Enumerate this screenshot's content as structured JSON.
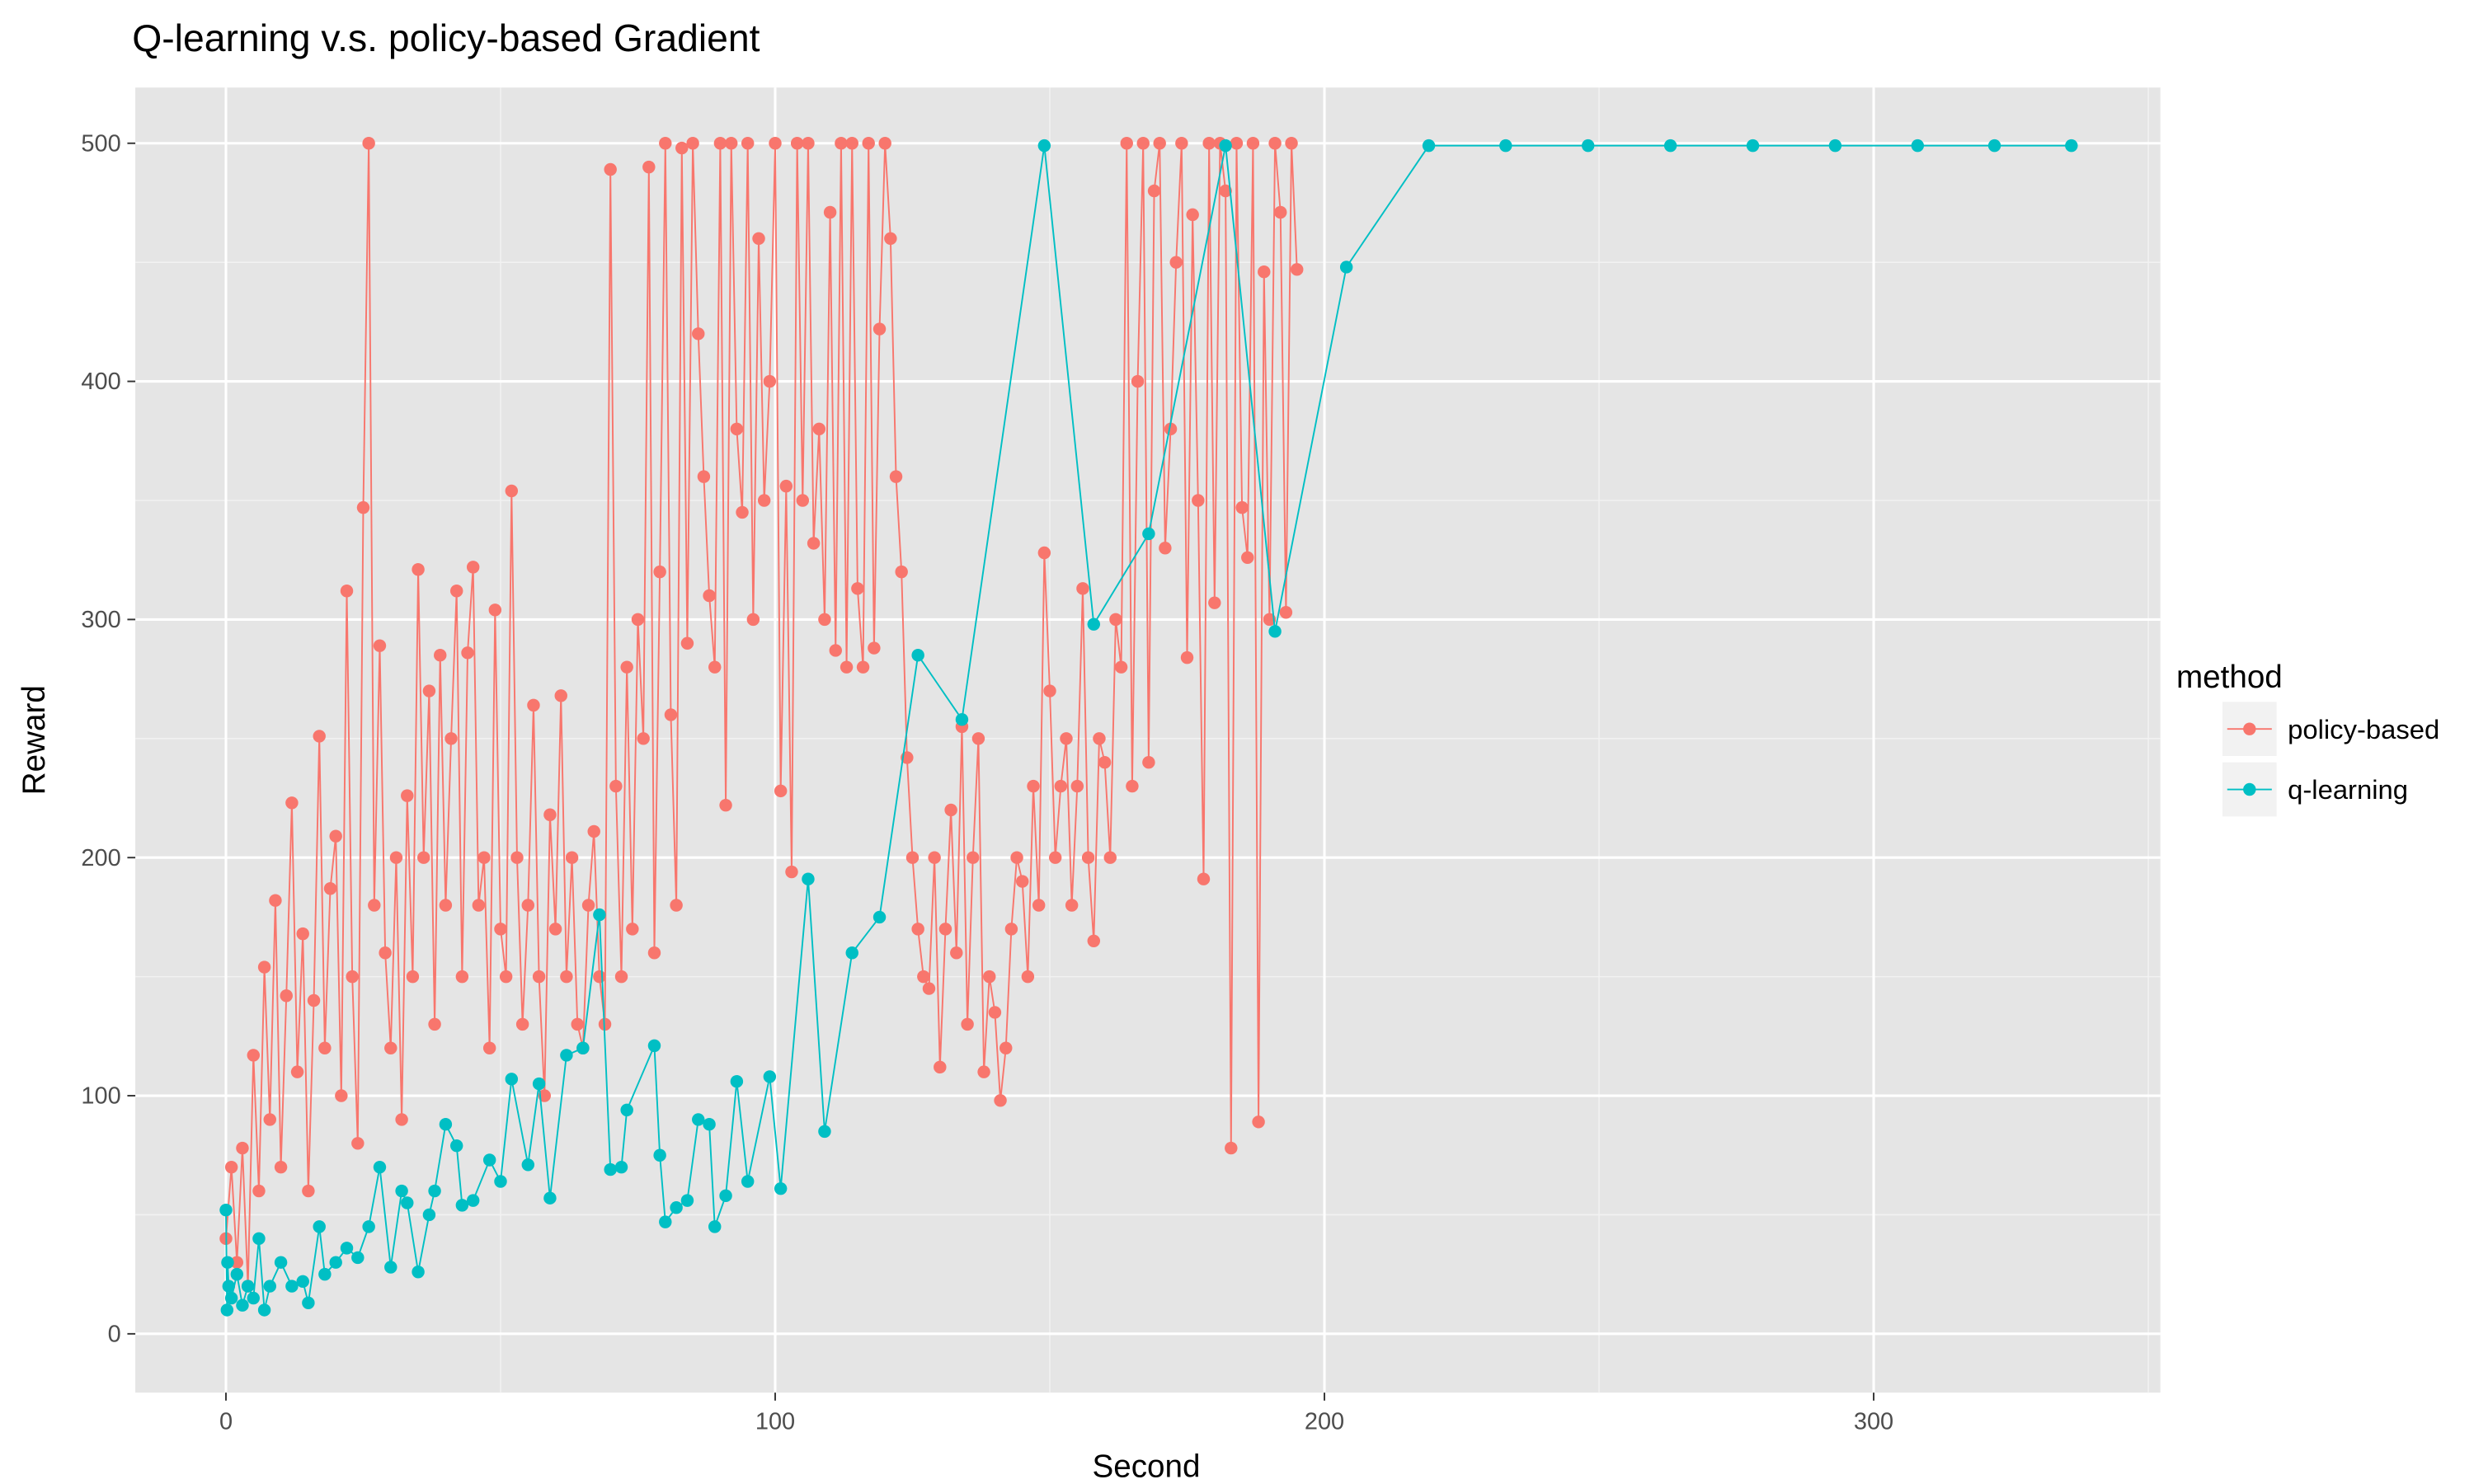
{
  "chart_data": {
    "type": "line",
    "title": "Q-learning v.s. policy-based Gradient",
    "x_label": "Second",
    "y_label": "Reward",
    "legend_title": "method",
    "legend_position": "right",
    "grid": true,
    "points": true,
    "xlim": [
      -16.5,
      352.2
    ],
    "ylim": [
      -24.7,
      523.4
    ],
    "xticks": [
      0,
      100,
      200,
      300
    ],
    "yticks": [
      0,
      100,
      200,
      300,
      400,
      500
    ],
    "series": [
      {
        "name": "policy-based",
        "color": "#F8766D",
        "x": [
          0,
          1,
          2,
          3,
          4,
          5,
          6,
          7,
          8,
          9,
          10,
          11,
          12,
          13,
          14,
          15,
          16,
          17,
          18,
          19,
          20,
          21,
          22,
          23,
          24,
          25,
          26,
          27,
          28,
          29,
          30,
          31,
          32,
          33,
          34,
          35,
          36,
          37,
          38,
          39,
          40,
          41,
          42,
          43,
          44,
          45,
          46,
          47,
          48,
          49,
          50,
          51,
          52,
          53,
          54,
          55,
          56,
          57,
          58,
          59,
          60,
          61,
          62,
          63,
          64,
          65,
          66,
          67,
          68,
          69,
          70,
          71,
          72,
          73,
          74,
          75,
          76,
          77,
          78,
          79,
          80,
          81,
          82,
          83,
          84,
          85,
          86,
          87,
          88,
          89,
          90,
          91,
          92,
          93,
          94,
          95,
          96,
          97,
          98,
          99,
          100,
          101,
          102,
          103,
          104,
          105,
          106,
          107,
          108,
          109,
          110,
          111,
          112,
          113,
          114,
          115,
          116,
          117,
          118,
          119,
          120,
          121,
          122,
          123,
          124,
          125,
          126,
          127,
          128,
          129,
          130,
          131,
          132,
          133,
          134,
          135,
          136,
          137,
          138,
          139,
          140,
          141,
          142,
          143,
          144,
          145,
          146,
          147,
          148,
          149,
          150,
          151,
          152,
          153,
          154,
          155,
          156,
          157,
          158,
          159,
          160,
          161,
          162,
          163,
          164,
          165,
          166,
          167,
          168,
          169,
          170,
          171,
          172,
          173,
          174,
          175,
          176,
          177,
          178,
          179,
          180,
          181,
          182,
          183,
          184,
          185,
          186,
          187,
          188,
          189,
          190,
          191,
          192,
          193,
          194,
          195
        ],
        "values": [
          40,
          70,
          30,
          78,
          20,
          117,
          60,
          154,
          90,
          182,
          70,
          142,
          223,
          110,
          168,
          60,
          140,
          251,
          120,
          187,
          209,
          100,
          312,
          150,
          80,
          347,
          500,
          180,
          289,
          160,
          120,
          200,
          90,
          226,
          150,
          321,
          200,
          270,
          130,
          285,
          180,
          250,
          312,
          150,
          286,
          322,
          180,
          200,
          120,
          304,
          170,
          150,
          354,
          200,
          130,
          180,
          264,
          150,
          100,
          218,
          170,
          268,
          150,
          200,
          130,
          120,
          180,
          211,
          150,
          130,
          489,
          230,
          150,
          280,
          170,
          300,
          250,
          490,
          160,
          320,
          500,
          260,
          180,
          498,
          290,
          500,
          420,
          360,
          310,
          280,
          500,
          222,
          500,
          380,
          345,
          500,
          300,
          460,
          350,
          400,
          500,
          228,
          356,
          194,
          500,
          350,
          500,
          332,
          380,
          300,
          471,
          287,
          500,
          280,
          500,
          313,
          280,
          500,
          288,
          422,
          500,
          460,
          360,
          320,
          242,
          200,
          170,
          150,
          145,
          200,
          112,
          170,
          220,
          160,
          255,
          130,
          200,
          250,
          110,
          150,
          135,
          98,
          120,
          170,
          200,
          190,
          150,
          230,
          180,
          328,
          270,
          200,
          230,
          250,
          180,
          230,
          313,
          200,
          165,
          250,
          240,
          200,
          300,
          280,
          500,
          230,
          400,
          500,
          240,
          480,
          500,
          330,
          380,
          450,
          500,
          284,
          470,
          350,
          191,
          500,
          307,
          500,
          480,
          78,
          500,
          347,
          326,
          500,
          89,
          446,
          300,
          500,
          471,
          303,
          500,
          447
        ]
      },
      {
        "name": "q-learning",
        "color": "#00BFC4",
        "x": [
          0,
          0.2,
          0.3,
          0.5,
          1,
          2,
          3,
          4,
          5,
          6,
          7,
          8,
          10,
          12,
          14,
          15,
          17,
          18,
          20,
          22,
          24,
          26,
          28,
          30,
          32,
          33,
          35,
          37,
          38,
          40,
          42,
          43,
          45,
          48,
          50,
          52,
          55,
          57,
          59,
          62,
          65,
          68,
          70,
          72,
          73,
          78,
          79,
          80,
          82,
          84,
          86,
          88,
          89,
          91,
          93,
          95,
          99,
          101,
          106,
          109,
          114,
          119,
          126,
          134,
          149,
          158,
          168,
          182,
          191,
          204,
          219,
          233,
          248,
          263,
          278,
          293,
          308,
          322,
          336
        ],
        "values": [
          52,
          10,
          30,
          20,
          15,
          25,
          12,
          20,
          15,
          40,
          10,
          20,
          30,
          20,
          22,
          13,
          45,
          25,
          30,
          36,
          32,
          45,
          70,
          28,
          60,
          55,
          26,
          50,
          60,
          88,
          79,
          54,
          56,
          73,
          64,
          107,
          71,
          105,
          57,
          117,
          120,
          176,
          69,
          70,
          94,
          121,
          75,
          47,
          53,
          56,
          90,
          88,
          45,
          58,
          106,
          64,
          108,
          61,
          191,
          85,
          160,
          175,
          285,
          258,
          499,
          298,
          336,
          499,
          295,
          448,
          499,
          499,
          499,
          499,
          499,
          499,
          499,
          499,
          499
        ]
      }
    ]
  }
}
